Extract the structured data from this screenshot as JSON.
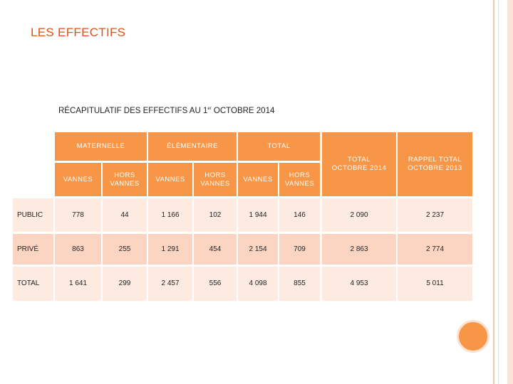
{
  "slide": {
    "title": "LES EFFECTIFS",
    "subtitle_main": "RÉCAPITULATIF DES EFFECTIFS AU 1",
    "subtitle_sup": "er",
    "subtitle_end": " OCTOBRE 2014",
    "accent_color": "#f79646",
    "title_color": "#d9531e"
  },
  "table": {
    "group_headers": [
      "MATERNELLE",
      "ÉLÉMENTAIRE",
      "TOTAL"
    ],
    "sub_headers": [
      "VANNES",
      "HORS VANNES",
      "VANNES",
      "HORS VANNES",
      "VANNES",
      "HORS VANNES"
    ],
    "total_header": "TOTAL OCTOBRE 2014",
    "rappel_header": "RAPPEL TOTAL OCTOBRE 2013",
    "rows": [
      {
        "label": "PUBLIC",
        "values": [
          "778",
          "44",
          "1 166",
          "102",
          "1 944",
          "146",
          "2 090",
          "2 237"
        ]
      },
      {
        "label": "PRIVÉ",
        "values": [
          "863",
          "255",
          "1 291",
          "454",
          "2 154",
          "709",
          "2 863",
          "2 774"
        ]
      },
      {
        "label": "TOTAL",
        "values": [
          "1 641",
          "299",
          "2 457",
          "556",
          "4 098",
          "855",
          "4 953",
          "5 011"
        ]
      }
    ]
  }
}
